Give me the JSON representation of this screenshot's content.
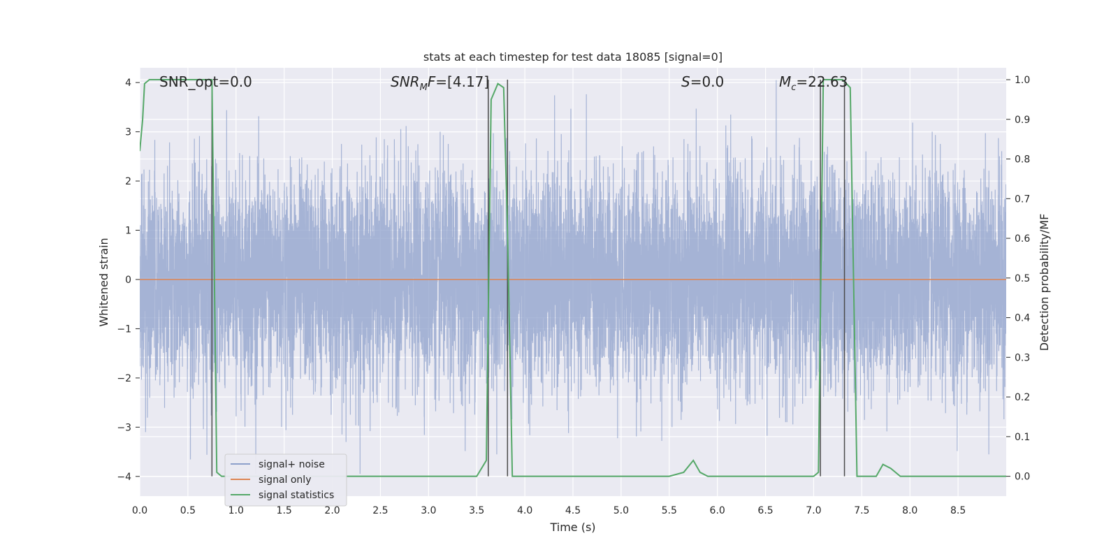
{
  "chart_data": {
    "type": "line",
    "title": "stats at each timestep for test data 18085 [signal=0]",
    "xlabel": "Time (s)",
    "ylabel_left": "Whitened strain",
    "ylabel_right": "Detection probability/MF",
    "xlim": [
      0.0,
      9.0
    ],
    "ylim_left": [
      -4.4,
      4.3
    ],
    "ylim_right": [
      -0.05,
      1.03
    ],
    "x_ticks": [
      "0.0",
      "0.5",
      "1.0",
      "1.5",
      "2.0",
      "2.5",
      "3.0",
      "3.5",
      "4.0",
      "4.5",
      "5.0",
      "5.5",
      "6.0",
      "6.5",
      "7.0",
      "7.5",
      "8.0",
      "8.5"
    ],
    "y_left_ticks": [
      "4",
      "3",
      "2",
      "1",
      "0",
      "−1",
      "−2",
      "−3",
      "−4"
    ],
    "y_right_ticks": [
      "1.0",
      "0.9",
      "0.8",
      "0.7",
      "0.6",
      "0.5",
      "0.4",
      "0.3",
      "0.2",
      "0.1",
      "0.0"
    ],
    "grid": true,
    "legend_placement": "lower-left",
    "annotations": {
      "snr_opt": "SNR_opt=0.0",
      "snr_mf": "=[4.17]",
      "snr_mf_main": "SNR",
      "snr_mf_sub": "M",
      "snr_mf_suffix": "F",
      "s": "S",
      "s_value": "=0.0",
      "mc_main": "M",
      "mc_sub": "c",
      "mc_value": "=22.63"
    },
    "series": [
      {
        "name": "signal+ noise",
        "color": "#8da0cb",
        "description_type": "noise",
        "sample_rate_hz": 2048,
        "std": 1.0
      },
      {
        "name": "signal only",
        "color": "#dd8452",
        "x": [
          0.0,
          9.0
        ],
        "y": [
          0.0,
          0.0
        ]
      },
      {
        "name": "signal statistics",
        "color": "#55a868",
        "axis": "right",
        "x": [
          0.0,
          0.03,
          0.05,
          0.1,
          0.2,
          0.4,
          0.6,
          0.7,
          0.75,
          0.8,
          0.85,
          1.0,
          2.0,
          3.0,
          3.5,
          3.6,
          3.65,
          3.72,
          3.78,
          3.82,
          3.87,
          3.95,
          4.0,
          5.0,
          5.5,
          5.65,
          5.75,
          5.82,
          5.9,
          6.0,
          6.5,
          7.0,
          7.05,
          7.1,
          7.15,
          7.2,
          7.3,
          7.38,
          7.45,
          7.55,
          7.65,
          7.72,
          7.8,
          7.9,
          8.0,
          8.5,
          9.0
        ],
        "y": [
          0.82,
          0.9,
          0.99,
          1.0,
          1.0,
          1.0,
          1.0,
          1.0,
          1.0,
          0.01,
          0.0,
          0.0,
          0.0,
          0.0,
          0.0,
          0.04,
          0.95,
          0.99,
          0.98,
          0.62,
          0.0,
          0.0,
          0.0,
          0.0,
          0.0,
          0.01,
          0.04,
          0.01,
          0.0,
          0.0,
          0.0,
          0.0,
          0.01,
          1.0,
          1.0,
          1.0,
          1.0,
          0.98,
          0.0,
          0.0,
          0.0,
          0.03,
          0.02,
          0.0,
          0.0,
          0.0,
          0.0
        ]
      }
    ],
    "vertical_lines_x": [
      0.75,
      3.62,
      3.82,
      7.07,
      7.32
    ],
    "vertical_line_color": "#4a4a4a"
  }
}
